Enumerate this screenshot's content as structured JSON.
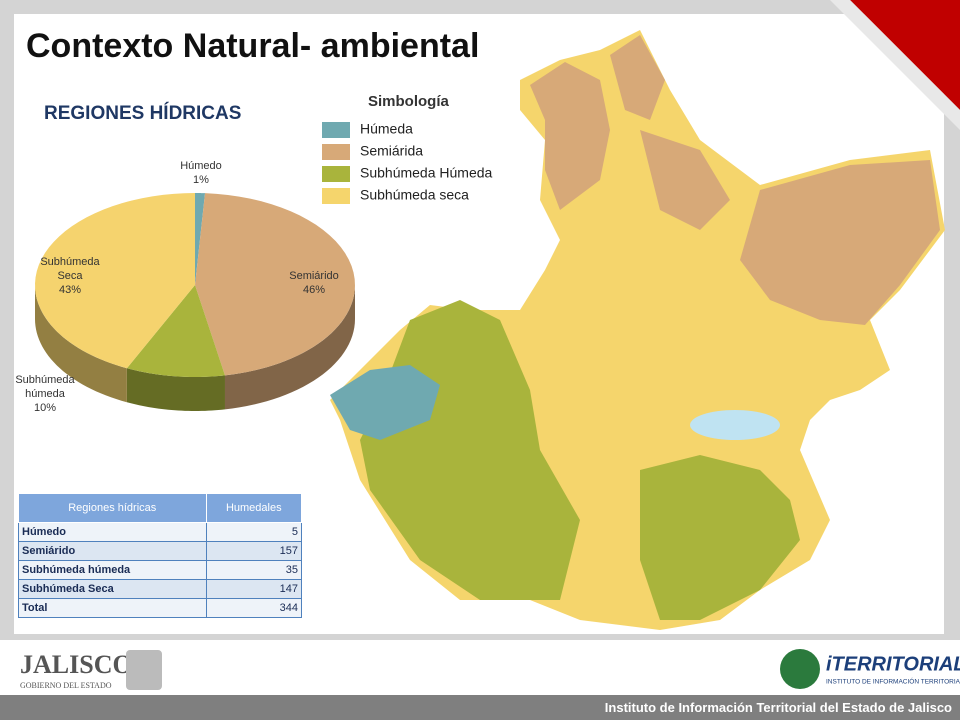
{
  "title": "Contexto Natural- ambiental",
  "chart_data": {
    "type": "pie",
    "title": "REGIONES HÍDRICAS",
    "categories": [
      "Húmedo",
      "Semiárido",
      "Subhúmeda húmeda",
      "Subhúmeda Seca"
    ],
    "values": [
      1,
      46,
      10,
      43
    ],
    "value_labels": [
      "1%",
      "46%",
      "10%",
      "43%"
    ],
    "colors": [
      "#6fa9b0",
      "#d7a978",
      "#a9b43c",
      "#f5d36e"
    ]
  },
  "map_legend": {
    "title": "Simbología",
    "items": [
      {
        "label": "Húmeda",
        "color": "#6fa9b0"
      },
      {
        "label": "Semiárida",
        "color": "#d7a978"
      },
      {
        "label": "Subhúmeda Húmeda",
        "color": "#a9b43c"
      },
      {
        "label": "Subhúmeda seca",
        "color": "#f5d56c"
      }
    ]
  },
  "table": {
    "header": [
      "Regiones hídricas",
      "Humedales"
    ],
    "rows": [
      [
        "Húmedo",
        5
      ],
      [
        "Semiárido",
        157
      ],
      [
        "Subhúmeda húmeda",
        35
      ],
      [
        "Subhúmeda Seca",
        147
      ],
      [
        "Total",
        344
      ]
    ]
  },
  "logos": {
    "jalisco": {
      "name": "JALISCO",
      "subtitle": "GOBIERNO DEL ESTADO"
    },
    "iterritorial": {
      "name": "iTERRITORIAL",
      "subtitle": "INSTITUTO DE INFORMACIÓN TERRITORIAL"
    }
  },
  "footer": "Instituto de Información Territorial del Estado de Jalisco"
}
